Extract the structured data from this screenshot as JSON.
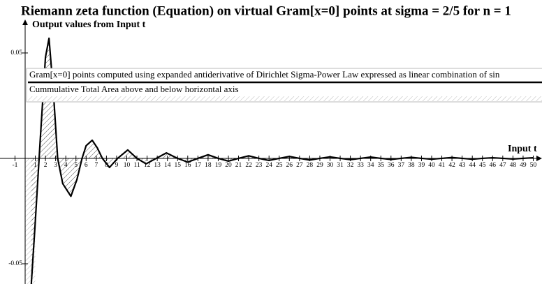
{
  "chart_data": {
    "type": "line",
    "title": "Riemann zeta function (Equation) on virtual Gram[x=0] points at sigma = 2/5 for n = 1",
    "y_label": "Output values from Input t",
    "x_label": "Input t",
    "x": [
      0.6,
      1.0,
      1.5,
      2.0,
      2.35,
      2.8,
      3.2,
      3.7,
      4.5,
      5.1,
      5.6,
      6.0,
      6.6,
      7.1,
      7.6,
      8.3,
      9.1,
      10.1,
      11.0,
      11.9,
      12.9,
      13.9,
      15.0,
      16.0,
      17.0,
      18.0,
      19.0,
      20.0,
      21.0,
      22.0,
      23.0,
      24.0,
      25.0,
      26.0,
      27.0,
      28.0,
      29.0,
      30.0,
      31.0,
      32.0,
      33.0,
      34.0,
      35.0,
      36.0,
      37.0,
      38.0,
      39.0,
      40.0,
      41.0,
      42.0,
      43.0,
      44.0,
      45.0,
      46.0,
      47.0,
      48.0,
      49.0,
      50.0
    ],
    "series": [
      {
        "name": "Gram[x=0] points computed using expanded antiderivative of Dirichlet Sigma-Power Law expressed as linear combination of sin",
        "color": "#000000",
        "values": [
          -0.06,
          -0.03,
          0.01,
          0.048,
          0.057,
          0.03,
          0,
          -0.012,
          -0.018,
          -0.01,
          0,
          0.006,
          0.0086,
          0.005,
          0,
          -0.0043,
          0,
          0.004,
          0,
          -0.0026,
          0,
          0.0026,
          0,
          -0.0018,
          0,
          0.0017,
          0,
          -0.0013,
          0,
          0.0012,
          0,
          -0.001,
          0,
          0.0009,
          0,
          -0.0008,
          0,
          0.0007,
          0,
          -0.0006,
          0,
          0.0006,
          0,
          -0.0005,
          0,
          0.0005,
          0,
          -0.0004,
          0,
          0.0004,
          0,
          -0.0004,
          0,
          0.0003,
          0,
          -0.0003,
          0,
          0.0003
        ]
      }
    ],
    "area": {
      "name": "Cummulative Total Area above and below horizontal axis",
      "pattern": "hatch"
    },
    "xlim": [
      -2.474,
      50.86
    ],
    "ylim": [
      -0.0596,
      0.0652
    ],
    "xticks": [
      -1,
      1,
      2,
      3,
      4,
      5,
      6,
      7,
      8,
      9,
      10,
      11,
      12,
      13,
      14,
      15,
      16,
      17,
      18,
      19,
      20,
      21,
      22,
      23,
      24,
      25,
      26,
      27,
      28,
      29,
      30,
      31,
      32,
      33,
      34,
      35,
      36,
      37,
      38,
      39,
      40,
      41,
      42,
      43,
      44,
      45,
      46,
      47,
      48,
      49,
      50
    ],
    "yticks": [
      0.05,
      -0.05
    ],
    "grid": false
  }
}
